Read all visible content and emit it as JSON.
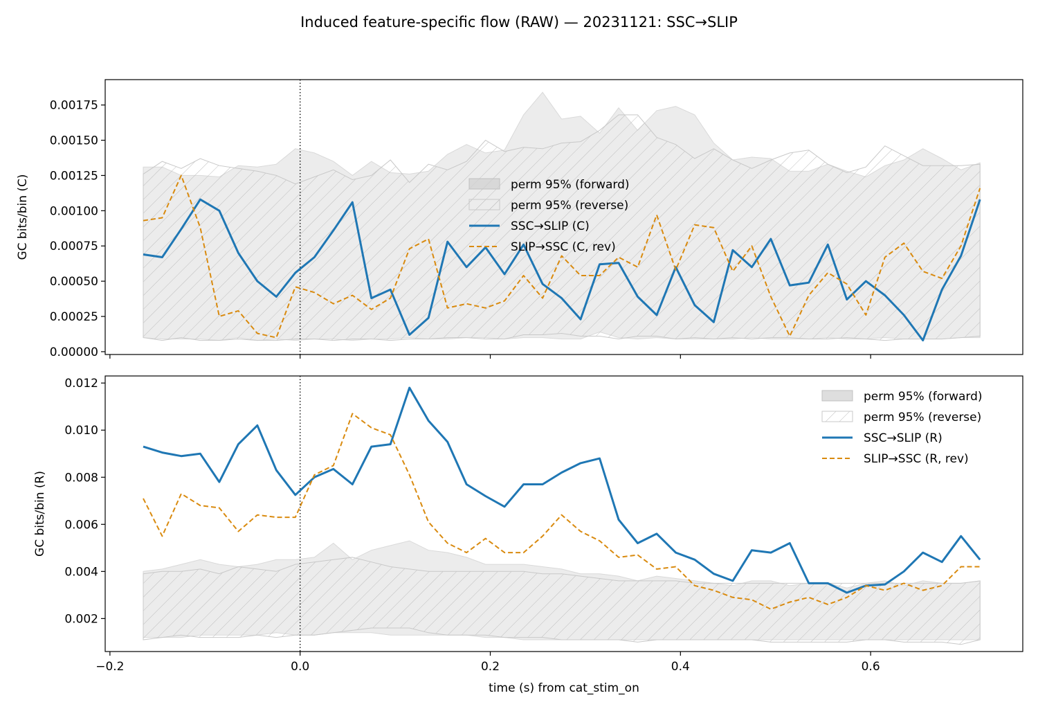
{
  "figure": {
    "title": "Induced feature-specific flow (RAW) — 20231121: SSC→SLIP"
  },
  "chart_data": [
    {
      "type": "line",
      "ylabel": "GC bits/bin (C)",
      "xlabel": "",
      "xlim": [
        -0.205,
        0.76
      ],
      "ylim": [
        -2e-05,
        0.00193
      ],
      "xticks": [
        -0.2,
        0.0,
        0.2,
        0.4,
        0.6
      ],
      "xtick_labels_visible": false,
      "yticks": [
        0.0,
        0.00025,
        0.0005,
        0.00075,
        0.001,
        0.00125,
        0.0015,
        0.00175
      ],
      "ytick_labels": [
        "0.00000",
        "0.00025",
        "0.00050",
        "0.00075",
        "0.00100",
        "0.00125",
        "0.00150",
        "0.00175"
      ],
      "vline_x": 0.0,
      "legend_position": "center",
      "legend": [
        "perm 95% (forward)",
        "perm 95% (reverse)",
        "SSC→SLIP (C)",
        "SLIP→SSC (C, rev)"
      ],
      "x": [
        -0.165,
        -0.145,
        -0.125,
        -0.105,
        -0.085,
        -0.065,
        -0.045,
        -0.025,
        -0.005,
        0.015,
        0.035,
        0.055,
        0.075,
        0.095,
        0.115,
        0.135,
        0.155,
        0.175,
        0.195,
        0.215,
        0.235,
        0.255,
        0.275,
        0.295,
        0.315,
        0.335,
        0.355,
        0.375,
        0.395,
        0.415,
        0.435,
        0.455,
        0.475,
        0.495,
        0.515,
        0.535,
        0.555,
        0.575,
        0.595,
        0.615,
        0.635,
        0.655,
        0.675,
        0.695,
        0.715
      ],
      "series": [
        {
          "name": "SSC→SLIP (C)",
          "style": "solid",
          "color": "#1f77b4",
          "values": [
            0.00069,
            0.00067,
            0.00087,
            0.00108,
            0.001,
            0.0007,
            0.0005,
            0.00039,
            0.00056,
            0.00067,
            0.00086,
            0.00106,
            0.00038,
            0.00044,
            0.00012,
            0.00024,
            0.00078,
            0.0006,
            0.00074,
            0.00055,
            0.00076,
            0.00048,
            0.00038,
            0.00023,
            0.00062,
            0.00063,
            0.00039,
            0.00026,
            0.0006,
            0.00033,
            0.00021,
            0.00072,
            0.0006,
            0.0008,
            0.00047,
            0.00049,
            0.00076,
            0.00037,
            0.0005,
            0.0004,
            0.00026,
            8e-05,
            0.00044,
            0.00068,
            0.00108
          ]
        },
        {
          "name": "SLIP→SSC (C, rev)",
          "style": "dashed",
          "color": "#d98a0e",
          "values": [
            0.00093,
            0.00095,
            0.00125,
            0.00088,
            0.00025,
            0.00029,
            0.00013,
            0.0001,
            0.00046,
            0.00042,
            0.00034,
            0.0004,
            0.0003,
            0.00038,
            0.00073,
            0.0008,
            0.00031,
            0.00034,
            0.00031,
            0.00036,
            0.00054,
            0.00038,
            0.00068,
            0.00054,
            0.00054,
            0.00067,
            0.0006,
            0.00097,
            0.00058,
            0.0009,
            0.00088,
            0.00057,
            0.00075,
            0.00039,
            0.00011,
            0.0004,
            0.00056,
            0.00048,
            0.00026,
            0.00067,
            0.00077,
            0.00057,
            0.00052,
            0.00075,
            0.00116
          ]
        }
      ],
      "bands": [
        {
          "name": "perm 95% (forward)",
          "style": "filled",
          "color": "#d9d9d9",
          "upper": [
            0.00131,
            0.00131,
            0.00125,
            0.00125,
            0.00124,
            0.00132,
            0.00131,
            0.00133,
            0.00144,
            0.00141,
            0.00135,
            0.00125,
            0.00135,
            0.00127,
            0.00126,
            0.00128,
            0.0014,
            0.00147,
            0.00141,
            0.00143,
            0.00168,
            0.00184,
            0.00165,
            0.00167,
            0.00155,
            0.00173,
            0.00157,
            0.00171,
            0.00174,
            0.00168,
            0.00148,
            0.00136,
            0.00138,
            0.00137,
            0.00128,
            0.00128,
            0.00133,
            0.00128,
            0.00124,
            0.00132,
            0.00136,
            0.00144,
            0.00137,
            0.00129,
            0.00134
          ],
          "lower": [
            0.0001,
            9e-05,
            9e-05,
            9e-05,
            8e-05,
            0.0001,
            8e-05,
            9e-05,
            8e-05,
            9e-05,
            9e-05,
            8e-05,
            9e-05,
            9e-05,
            0.0001,
            9e-05,
            9e-05,
            0.0001,
            0.0001,
            9e-05,
            0.0001,
            0.0001,
            9e-05,
            9e-05,
            0.00014,
            0.0001,
            9e-05,
            0.0001,
            9e-05,
            9e-05,
            9e-05,
            9e-05,
            0.0001,
            9e-05,
            9e-05,
            9e-05,
            0.0001,
            9e-05,
            9e-05,
            0.0001,
            9e-05,
            9e-05,
            9e-05,
            0.0001,
            0.0001
          ]
        },
        {
          "name": "perm 95% (reverse)",
          "style": "hatched",
          "color": "#c8c8c8",
          "upper": [
            0.00126,
            0.00135,
            0.0013,
            0.00137,
            0.00132,
            0.0013,
            0.00128,
            0.00125,
            0.00119,
            0.00124,
            0.00129,
            0.00122,
            0.00125,
            0.00136,
            0.0012,
            0.00133,
            0.00129,
            0.00135,
            0.0015,
            0.00142,
            0.00145,
            0.00144,
            0.00148,
            0.00149,
            0.00157,
            0.00168,
            0.00168,
            0.00152,
            0.00147,
            0.00137,
            0.00144,
            0.00136,
            0.0013,
            0.00136,
            0.00141,
            0.00143,
            0.00133,
            0.00127,
            0.00131,
            0.00146,
            0.00139,
            0.00132,
            0.00132,
            0.00132,
            0.00133
          ],
          "lower": [
            0.0001,
            8e-05,
            0.0001,
            8e-05,
            8e-05,
            9e-05,
            8e-05,
            8e-05,
            9e-05,
            9e-05,
            8e-05,
            9e-05,
            9e-05,
            8e-05,
            9e-05,
            9e-05,
            0.0001,
            0.0001,
            9e-05,
            9e-05,
            0.00012,
            0.00012,
            0.00013,
            0.00011,
            0.00011,
            9e-05,
            0.00011,
            0.00011,
            9e-05,
            0.0001,
            9e-05,
            0.0001,
            9e-05,
            0.0001,
            0.0001,
            9e-05,
            9e-05,
            0.0001,
            9e-05,
            8e-05,
            9e-05,
            9e-05,
            9e-05,
            0.0001,
            0.00011
          ]
        }
      ]
    },
    {
      "type": "line",
      "ylabel": "GC bits/bin (R)",
      "xlabel": "time (s) from cat_stim_on",
      "xlim": [
        -0.205,
        0.76
      ],
      "ylim": [
        0.0006,
        0.0123
      ],
      "xticks": [
        -0.2,
        0.0,
        0.2,
        0.4,
        0.6
      ],
      "xtick_labels": [
        "−0.2",
        "0.0",
        "0.2",
        "0.4",
        "0.6"
      ],
      "yticks": [
        0.002,
        0.004,
        0.006,
        0.008,
        0.01,
        0.012
      ],
      "ytick_labels": [
        "0.002",
        "0.004",
        "0.006",
        "0.008",
        "0.010",
        "0.012"
      ],
      "vline_x": 0.0,
      "legend_position": "upper right",
      "legend": [
        "perm 95% (forward)",
        "perm 95% (reverse)",
        "SSC→SLIP (R)",
        "SLIP→SSC (R, rev)"
      ],
      "x": [
        -0.165,
        -0.145,
        -0.125,
        -0.105,
        -0.085,
        -0.065,
        -0.045,
        -0.025,
        -0.005,
        0.015,
        0.035,
        0.055,
        0.075,
        0.095,
        0.115,
        0.135,
        0.155,
        0.175,
        0.195,
        0.215,
        0.235,
        0.255,
        0.275,
        0.295,
        0.315,
        0.335,
        0.355,
        0.375,
        0.395,
        0.415,
        0.435,
        0.455,
        0.475,
        0.495,
        0.515,
        0.535,
        0.555,
        0.575,
        0.595,
        0.615,
        0.635,
        0.655,
        0.675,
        0.695,
        0.715
      ],
      "series": [
        {
          "name": "SSC→SLIP (R)",
          "style": "solid",
          "color": "#1f77b4",
          "values": [
            0.0093,
            0.00905,
            0.0089,
            0.009,
            0.0078,
            0.0094,
            0.0102,
            0.0083,
            0.00725,
            0.008,
            0.00835,
            0.0077,
            0.0093,
            0.0094,
            0.0118,
            0.0104,
            0.0095,
            0.0077,
            0.0072,
            0.00675,
            0.0077,
            0.0077,
            0.0082,
            0.0086,
            0.0088,
            0.0062,
            0.0052,
            0.0056,
            0.0048,
            0.0045,
            0.0039,
            0.0036,
            0.0049,
            0.0048,
            0.0052,
            0.0035,
            0.0035,
            0.0031,
            0.0034,
            0.00345,
            0.004,
            0.0048,
            0.0044,
            0.0055,
            0.0045
          ]
        },
        {
          "name": "SLIP→SSC (R, rev)",
          "style": "dashed",
          "color": "#d98a0e",
          "values": [
            0.0071,
            0.0055,
            0.0073,
            0.0068,
            0.0067,
            0.0057,
            0.0064,
            0.0063,
            0.0063,
            0.0081,
            0.0085,
            0.0107,
            0.0101,
            0.0098,
            0.0081,
            0.0061,
            0.0052,
            0.0048,
            0.0054,
            0.0048,
            0.0048,
            0.0055,
            0.0064,
            0.0057,
            0.0053,
            0.0046,
            0.0047,
            0.0041,
            0.0042,
            0.0034,
            0.0032,
            0.0029,
            0.0028,
            0.0024,
            0.0027,
            0.0029,
            0.0026,
            0.0029,
            0.0034,
            0.0032,
            0.0035,
            0.0032,
            0.0034,
            0.0042,
            0.0042
          ]
        }
      ],
      "bands": [
        {
          "name": "perm 95% (forward)",
          "style": "filled",
          "color": "#d9d9d9",
          "upper": [
            0.004,
            0.0041,
            0.0043,
            0.0045,
            0.0043,
            0.0042,
            0.0043,
            0.0045,
            0.0045,
            0.0046,
            0.0052,
            0.0045,
            0.0049,
            0.0051,
            0.0053,
            0.0049,
            0.0048,
            0.0046,
            0.0043,
            0.0043,
            0.0043,
            0.0042,
            0.0041,
            0.0039,
            0.0039,
            0.0038,
            0.0036,
            0.0038,
            0.0037,
            0.0036,
            0.0035,
            0.0034,
            0.0036,
            0.0036,
            0.0034,
            0.0035,
            0.0035,
            0.0033,
            0.0035,
            0.0036,
            0.0034,
            0.0036,
            0.0035,
            0.0035,
            0.0036
          ],
          "lower": [
            0.0012,
            0.0012,
            0.0012,
            0.0013,
            0.0013,
            0.0013,
            0.0013,
            0.0014,
            0.0013,
            0.0013,
            0.0014,
            0.0014,
            0.0014,
            0.0013,
            0.0013,
            0.0013,
            0.0013,
            0.0013,
            0.0012,
            0.0012,
            0.0011,
            0.0011,
            0.0011,
            0.0011,
            0.0011,
            0.0011,
            0.0011,
            0.0011,
            0.0011,
            0.0011,
            0.0011,
            0.0011,
            0.0011,
            0.0011,
            0.0011,
            0.0011,
            0.0011,
            0.0011,
            0.0011,
            0.0011,
            0.0011,
            0.0011,
            0.0011,
            0.0011,
            0.0011
          ]
        },
        {
          "name": "perm 95% (reverse)",
          "style": "hatched",
          "color": "#c8c8c8",
          "upper": [
            0.0039,
            0.004,
            0.004,
            0.0041,
            0.0039,
            0.0042,
            0.0041,
            0.004,
            0.0043,
            0.0044,
            0.0045,
            0.0046,
            0.0044,
            0.0042,
            0.0041,
            0.004,
            0.004,
            0.004,
            0.004,
            0.004,
            0.004,
            0.0039,
            0.0039,
            0.0038,
            0.0037,
            0.0036,
            0.0036,
            0.0036,
            0.0036,
            0.0035,
            0.0035,
            0.0035,
            0.0035,
            0.0035,
            0.0035,
            0.0035,
            0.0035,
            0.0035,
            0.0035,
            0.0035,
            0.0035,
            0.0035,
            0.0035,
            0.0035,
            0.0036
          ],
          "lower": [
            0.0011,
            0.0012,
            0.0013,
            0.0012,
            0.0012,
            0.0012,
            0.0013,
            0.0012,
            0.0013,
            0.0013,
            0.0014,
            0.0015,
            0.0016,
            0.0016,
            0.0016,
            0.0014,
            0.0013,
            0.0013,
            0.0013,
            0.0012,
            0.0012,
            0.0012,
            0.0011,
            0.0011,
            0.0011,
            0.0011,
            0.001,
            0.0011,
            0.0011,
            0.0011,
            0.0011,
            0.0011,
            0.0011,
            0.001,
            0.001,
            0.001,
            0.001,
            0.001,
            0.0011,
            0.0011,
            0.001,
            0.001,
            0.001,
            0.0009,
            0.0011
          ]
        }
      ]
    }
  ]
}
